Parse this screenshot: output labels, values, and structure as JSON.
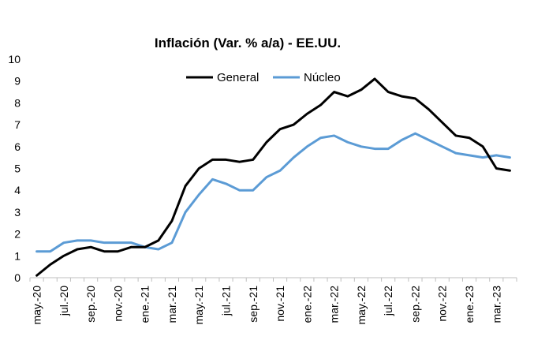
{
  "chart_data": {
    "type": "line",
    "title": "Inflación (Var. % a/a) - EE.UU.",
    "xlabel": "",
    "ylabel": "",
    "ylim": [
      0,
      10
    ],
    "yticks": [
      "0",
      "1",
      "2",
      "3",
      "4",
      "5",
      "6",
      "7",
      "8",
      "9",
      "10"
    ],
    "grid": false,
    "legend_position": "top-center",
    "x": [
      "may.-20",
      "jun.-20",
      "jul.-20",
      "ago.-20",
      "sep.-20",
      "oct.-20",
      "nov.-20",
      "dic.-20",
      "ene.-21",
      "feb.-21",
      "mar.-21",
      "abr.-21",
      "may.-21",
      "jun.-21",
      "jul.-21",
      "ago.-21",
      "sep.-21",
      "oct.-21",
      "nov.-21",
      "dic.-21",
      "ene.-22",
      "feb.-22",
      "mar.-22",
      "abr.-22",
      "may.-22",
      "jun.-22",
      "jul.-22",
      "ago.-22",
      "sep.-22",
      "oct.-22",
      "nov.-22",
      "dic.-22",
      "ene.-23",
      "feb.-23",
      "mar.-23",
      "abr.-23"
    ],
    "xtick_labels": [
      "may.-20",
      "jul.-20",
      "sep.-20",
      "nov.-20",
      "ene.-21",
      "mar.-21",
      "may.-21",
      "jul.-21",
      "sep.-21",
      "nov.-21",
      "ene.-22",
      "mar.-22",
      "may.-22",
      "jul.-22",
      "sep.-22",
      "nov.-22",
      "ene.-23",
      "mar.-23"
    ],
    "series": [
      {
        "name": "General",
        "color": "#000000",
        "values": [
          0.1,
          0.6,
          1.0,
          1.3,
          1.4,
          1.2,
          1.2,
          1.4,
          1.4,
          1.7,
          2.6,
          4.2,
          5.0,
          5.4,
          5.4,
          5.3,
          5.4,
          6.2,
          6.8,
          7.0,
          7.5,
          7.9,
          8.5,
          8.3,
          8.6,
          9.1,
          8.5,
          8.3,
          8.2,
          7.7,
          7.1,
          6.5,
          6.4,
          6.0,
          5.0,
          4.9
        ]
      },
      {
        "name": "Núcleo",
        "color": "#5B9BD5",
        "values": [
          1.2,
          1.2,
          1.6,
          1.7,
          1.7,
          1.6,
          1.6,
          1.6,
          1.4,
          1.3,
          1.6,
          3.0,
          3.8,
          4.5,
          4.3,
          4.0,
          4.0,
          4.6,
          4.9,
          5.5,
          6.0,
          6.4,
          6.5,
          6.2,
          6.0,
          5.9,
          5.9,
          6.3,
          6.6,
          6.3,
          6.0,
          5.7,
          5.6,
          5.5,
          5.6,
          5.5
        ]
      }
    ]
  }
}
